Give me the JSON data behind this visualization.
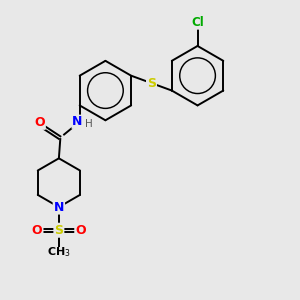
{
  "background_color": "#e8e8e8",
  "bond_color": "#000000",
  "atom_colors": {
    "N": "#0000ff",
    "O": "#ff0000",
    "S": "#cccc00",
    "Cl": "#00aa00",
    "C": "#000000",
    "H": "#555555"
  },
  "figsize": [
    3.0,
    3.0
  ],
  "dpi": 100
}
